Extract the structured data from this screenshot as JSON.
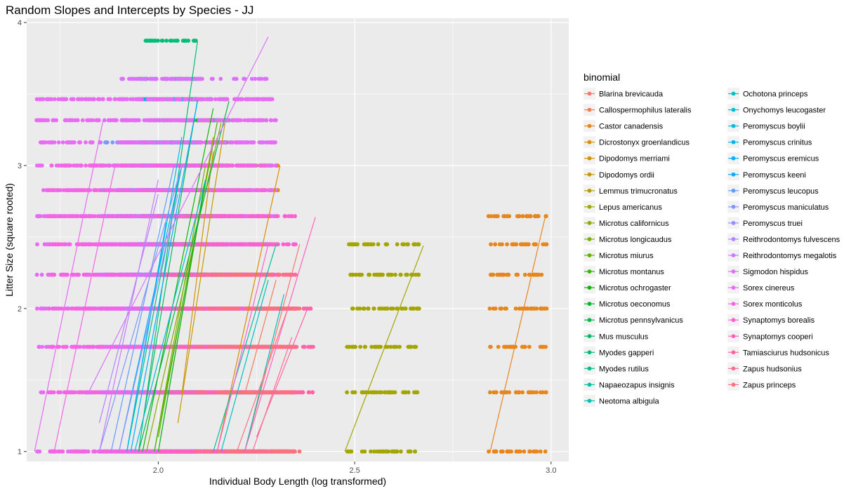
{
  "chart_data": {
    "type": "scatter",
    "title": "Random Slopes and Intercepts by Species - JJ",
    "xlabel": "Individual Body Length (log transformed)",
    "ylabel": "Litter Size (square rooted)",
    "xlim": [
      1.665,
      3.045
    ],
    "ylim": [
      0.93,
      4.03
    ],
    "x_ticks": [
      2.0,
      2.5,
      3.0
    ],
    "x_tick_labels": [
      "2.0",
      "2.5",
      "3.0"
    ],
    "y_ticks": [
      1,
      2,
      3,
      4
    ],
    "y_tick_labels": [
      "1",
      "2",
      "3",
      "4"
    ],
    "grid": true,
    "legend_title": "binomial",
    "legend_position": "right",
    "y_levels": [
      1.0,
      1.414,
      1.732,
      2.0,
      2.236,
      2.449,
      2.646,
      2.828,
      3.0,
      3.162,
      3.317,
      3.464,
      3.606,
      3.873
    ],
    "series": [
      {
        "name": "Blarina brevicauda",
        "color": "#F8766D",
        "x_range": [
          2.22,
          2.36
        ],
        "y_levels": [
          1.0,
          1.414,
          1.732,
          2.0
        ],
        "line": [
          [
            2.22,
            1.0
          ],
          [
            2.36,
            2.45
          ]
        ]
      },
      {
        "name": "Callospermophilus lateralis",
        "color": "#F37B59",
        "x_range": [
          2.22,
          2.3
        ],
        "y_levels": [
          1.732,
          2.0,
          2.236
        ],
        "line": [
          [
            2.22,
            1.4
          ],
          [
            2.3,
            2.2
          ]
        ]
      },
      {
        "name": "Castor canadensis",
        "color": "#E7861B",
        "x_range": [
          2.84,
          2.99
        ],
        "y_levels": [
          1.0,
          1.414,
          1.732,
          2.0,
          2.236,
          2.449,
          2.646
        ],
        "line": [
          [
            2.845,
            1.0
          ],
          [
            2.985,
            2.64
          ]
        ]
      },
      {
        "name": "Dicrostonyx groenlandicus",
        "color": "#DE8C00",
        "x_range": [
          2.16,
          2.31
        ],
        "y_levels": [
          1.0,
          1.414,
          2.0,
          2.449,
          2.828,
          3.0
        ],
        "line": [
          [
            2.15,
            1.0
          ],
          [
            2.31,
            3.0
          ]
        ]
      },
      {
        "name": "Dipodomys merriami",
        "color": "#D39200",
        "x_range": [
          2.05,
          2.15
        ],
        "y_levels": [
          1.414,
          1.732,
          2.0,
          2.236,
          2.449,
          2.646
        ],
        "line": [
          [
            2.06,
            1.4
          ],
          [
            2.14,
            3.1
          ]
        ]
      },
      {
        "name": "Dipodomys ordii",
        "color": "#C59900",
        "x_range": [
          2.05,
          2.17
        ],
        "y_levels": [
          1.414,
          1.732,
          2.0,
          2.236,
          2.449,
          2.646,
          3.0,
          3.317
        ],
        "line": [
          [
            2.05,
            1.2
          ],
          [
            2.17,
            3.3
          ]
        ]
      },
      {
        "name": "Lemmus trimucronatus",
        "color": "#B79F00",
        "x_range": [
          2.02,
          2.14
        ],
        "y_levels": [
          1.414,
          1.732,
          2.0,
          2.236,
          2.449,
          2.646,
          2.828,
          3.0
        ],
        "line": [
          [
            2.0,
            1.0
          ],
          [
            2.14,
            3.2
          ]
        ]
      },
      {
        "name": "Lepus americanus",
        "color": "#A3A500",
        "x_range": [
          2.48,
          2.67
        ],
        "y_levels": [
          1.0,
          1.414,
          1.732,
          2.0,
          2.236,
          2.449
        ],
        "line": [
          [
            2.475,
            1.0
          ],
          [
            2.675,
            2.44
          ]
        ]
      },
      {
        "name": "Microtus californicus",
        "color": "#8FAA00",
        "x_range": [
          1.98,
          2.15
        ],
        "y_levels": [
          1.0,
          1.414,
          1.732,
          2.0,
          2.236,
          2.449,
          2.646,
          2.828,
          3.0
        ],
        "line": [
          [
            1.97,
            1.0
          ],
          [
            2.16,
            3.3
          ]
        ]
      },
      {
        "name": "Microtus longicaudus",
        "color": "#7CAE00",
        "x_range": [
          2.0,
          2.13
        ],
        "y_levels": [
          1.0,
          1.414,
          1.732,
          2.0,
          2.236,
          2.449,
          2.646
        ],
        "line": [
          [
            1.99,
            1.0
          ],
          [
            2.12,
            3.0
          ]
        ]
      },
      {
        "name": "Microtus miurus",
        "color": "#62B200",
        "x_range": [
          2.0,
          2.12
        ],
        "y_levels": [
          1.0,
          1.414,
          1.732,
          2.0,
          2.236,
          2.449
        ],
        "line": [
          [
            2.0,
            1.1
          ],
          [
            2.12,
            2.9
          ]
        ]
      },
      {
        "name": "Microtus montanus",
        "color": "#3EB500",
        "x_range": [
          2.0,
          2.14
        ],
        "y_levels": [
          1.0,
          1.414,
          1.732,
          2.0,
          2.236,
          2.449,
          2.646,
          2.828
        ],
        "line": [
          [
            1.99,
            1.0
          ],
          [
            2.15,
            3.3
          ]
        ]
      },
      {
        "name": "Microtus ochrogaster",
        "color": "#0BB702",
        "x_range": [
          1.98,
          2.14
        ],
        "y_levels": [
          1.0,
          1.414,
          1.732,
          2.0,
          2.236,
          2.449,
          2.646,
          2.828,
          3.0
        ],
        "line": [
          [
            1.96,
            1.0
          ],
          [
            2.14,
            3.4
          ]
        ]
      },
      {
        "name": "Microtus oeconomus",
        "color": "#00B92A",
        "x_range": [
          2.0,
          2.12
        ],
        "y_levels": [
          1.0,
          1.414,
          1.732,
          2.0,
          2.236,
          2.449,
          2.646
        ],
        "line": [
          [
            2.0,
            1.0
          ],
          [
            2.12,
            2.9
          ]
        ]
      },
      {
        "name": "Microtus pennsylvanicus",
        "color": "#00BA4A",
        "x_range": [
          1.96,
          2.18
        ],
        "y_levels": [
          1.0,
          1.414,
          1.732,
          2.0,
          2.236,
          2.449,
          2.646,
          2.828,
          3.0,
          3.162,
          3.317,
          3.464
        ],
        "line": [
          [
            1.95,
            1.0
          ],
          [
            2.18,
            3.45
          ]
        ]
      },
      {
        "name": "Mus musculus",
        "color": "#00BC62",
        "x_range": [
          1.96,
          2.1
        ],
        "y_levels": [
          1.0,
          1.414,
          1.732,
          2.0,
          2.236,
          2.449,
          2.646,
          2.828,
          3.0
        ],
        "line": [
          [
            1.96,
            1.2
          ],
          [
            2.1,
            3.46
          ]
        ]
      },
      {
        "name": "Myodes gapperi",
        "color": "#00BD78",
        "x_range": [
          1.95,
          2.1
        ],
        "y_levels": [
          1.0,
          1.414,
          1.732,
          2.0,
          2.236,
          2.449,
          2.646,
          2.828,
          3.0,
          3.162,
          3.464,
          3.606,
          3.873
        ],
        "line": [
          [
            1.95,
            1.0
          ],
          [
            2.1,
            3.87
          ]
        ]
      },
      {
        "name": "Myodes rutilus",
        "color": "#00BF8C",
        "x_range": [
          1.95,
          2.05
        ],
        "y_levels": [
          1.0,
          1.414,
          1.732,
          2.0,
          2.236,
          2.449,
          2.646,
          2.828,
          3.0,
          3.162
        ],
        "line": [
          [
            1.92,
            1.0
          ],
          [
            2.06,
            3.0
          ]
        ]
      },
      {
        "name": "Napaeozapus insignis",
        "color": "#00C09F",
        "x_range": [
          2.14,
          2.27
        ],
        "y_levels": [
          1.0,
          1.414,
          1.732,
          2.0,
          2.236,
          2.449
        ],
        "line": [
          [
            2.14,
            1.0
          ],
          [
            2.3,
            2.45
          ]
        ]
      },
      {
        "name": "Neotoma albigula",
        "color": "#00C0B2",
        "x_range": [
          2.2,
          2.3
        ],
        "y_levels": [
          1.0,
          1.414,
          1.732,
          2.0
        ],
        "line": [
          [
            2.22,
            1.0
          ],
          [
            2.32,
            2.1
          ]
        ]
      },
      {
        "name": "Ochotona princeps",
        "color": "#00BFC4",
        "x_range": [
          2.16,
          2.28
        ],
        "y_levels": [
          1.0,
          1.414,
          1.732,
          2.0,
          2.236,
          2.449
        ],
        "line": [
          [
            2.16,
            1.0
          ],
          [
            2.28,
            2.2
          ]
        ]
      },
      {
        "name": "Onychomys leucogaster",
        "color": "#00BDD5",
        "x_range": [
          1.95,
          2.12
        ],
        "y_levels": [
          1.0,
          1.414,
          1.732,
          2.0,
          2.236,
          2.449,
          2.646,
          2.828
        ],
        "line": [
          [
            1.94,
            1.0
          ],
          [
            2.12,
            2.9
          ]
        ]
      },
      {
        "name": "Peromyscus boylii",
        "color": "#00BBE4",
        "x_range": [
          1.9,
          2.05
        ],
        "y_levels": [
          1.0,
          1.414,
          1.732,
          2.0,
          2.236,
          2.449,
          2.646,
          2.828,
          3.0
        ],
        "line": [
          [
            1.92,
            1.0
          ],
          [
            2.06,
            3.2
          ]
        ]
      },
      {
        "name": "Peromyscus crinitus",
        "color": "#00B7F2",
        "x_range": [
          1.92,
          2.0
        ],
        "y_levels": [
          1.0,
          1.414,
          1.732,
          2.0,
          2.236,
          2.449
        ],
        "line": [
          [
            1.92,
            1.0
          ],
          [
            2.02,
            2.6
          ]
        ]
      },
      {
        "name": "Peromyscus eremicus",
        "color": "#00B2FE",
        "x_range": [
          1.92,
          2.05
        ],
        "y_levels": [
          1.0,
          1.414,
          1.732,
          2.0,
          2.236,
          2.449,
          2.646,
          2.828,
          3.0
        ],
        "line": [
          [
            1.9,
            1.0
          ],
          [
            2.06,
            3.0
          ]
        ]
      },
      {
        "name": "Peromyscus keeni",
        "color": "#00ACFC",
        "x_range": [
          1.95,
          2.1
        ],
        "y_levels": [
          1.0,
          1.414,
          1.732,
          2.0,
          2.236,
          2.449,
          2.646,
          2.828,
          3.0,
          3.162,
          3.464
        ],
        "line": [
          [
            1.93,
            1.0
          ],
          [
            2.1,
            3.45
          ]
        ]
      },
      {
        "name": "Peromyscus leucopus",
        "color": "#5E9DFB",
        "x_range": [
          1.9,
          2.05
        ],
        "y_levels": [
          1.0,
          1.414,
          1.732,
          2.0,
          2.236,
          2.449,
          2.646,
          2.828,
          3.0
        ],
        "line": [
          [
            1.88,
            1.0
          ],
          [
            2.04,
            3.0
          ]
        ]
      },
      {
        "name": "Peromyscus maniculatus",
        "color": "#7F96FF",
        "x_range": [
          1.85,
          2.1
        ],
        "y_levels": [
          1.0,
          1.414,
          1.732,
          2.0,
          2.236,
          2.449,
          2.646,
          2.828,
          3.0,
          3.162
        ],
        "line": [
          [
            1.85,
            1.0
          ],
          [
            2.06,
            3.0
          ]
        ]
      },
      {
        "name": "Peromyscus truei",
        "color": "#9590FF",
        "x_range": [
          1.92,
          2.08
        ],
        "y_levels": [
          1.0,
          1.414,
          1.732,
          2.0,
          2.236,
          2.449,
          2.646,
          2.828
        ],
        "line": [
          [
            1.9,
            1.0
          ],
          [
            2.05,
            2.8
          ]
        ]
      },
      {
        "name": "Reithrodontomys fulvescens",
        "color": "#B083FF",
        "x_range": [
          1.85,
          2.0
        ],
        "y_levels": [
          1.0,
          1.414,
          1.732,
          2.0,
          2.236,
          2.449
        ],
        "line": [
          [
            1.85,
            1.2
          ],
          [
            2.0,
            2.8
          ]
        ]
      },
      {
        "name": "Reithrodontomys megalotis",
        "color": "#C77CFF",
        "x_range": [
          1.85,
          2.0
        ],
        "y_levels": [
          1.0,
          1.414,
          1.732,
          2.0,
          2.236,
          2.449,
          2.646
        ],
        "line": [
          [
            1.85,
            1.0
          ],
          [
            2.0,
            2.9
          ]
        ]
      },
      {
        "name": "Sigmodon hispidus",
        "color": "#DB72FB",
        "x_range": [
          1.9,
          2.28
        ],
        "y_levels": [
          1.0,
          1.414,
          1.732,
          2.0,
          2.236,
          2.449,
          2.646,
          2.828,
          3.0,
          3.162,
          3.317,
          3.464,
          3.606
        ],
        "line": [
          [
            1.82,
            1.4
          ],
          [
            2.28,
            3.9
          ]
        ]
      },
      {
        "name": "Sorex cinereus",
        "color": "#E76BF3",
        "x_range": [
          1.69,
          2.3
        ],
        "y_levels": [
          1.0,
          1.414,
          1.732,
          2.0,
          2.236,
          2.449,
          2.646,
          2.828,
          3.0,
          3.162,
          3.317,
          3.464
        ],
        "line": [
          [
            1.685,
            1.0
          ],
          [
            1.86,
            3.32
          ]
        ]
      },
      {
        "name": "Sorex monticolus",
        "color": "#F564E3",
        "x_range": [
          1.72,
          2.28
        ],
        "y_levels": [
          1.0,
          1.414,
          1.732,
          2.0,
          2.236,
          2.449,
          2.646,
          2.828,
          3.0
        ],
        "line": [
          [
            1.735,
            1.0
          ],
          [
            1.89,
            3.0
          ]
        ]
      },
      {
        "name": "Synaptomys borealis",
        "color": "#FD61D1",
        "x_range": [
          2.0,
          2.35
        ],
        "y_levels": [
          1.0,
          1.414,
          1.732,
          2.0,
          2.236,
          2.449,
          2.646
        ],
        "line": [
          [
            2.15,
            1.0
          ],
          [
            2.28,
            2.45
          ]
        ]
      },
      {
        "name": "Synaptomys cooperi",
        "color": "#FF62BC",
        "x_range": [
          2.0,
          2.35
        ],
        "y_levels": [
          1.0,
          1.414,
          1.732,
          2.0,
          2.236
        ],
        "line": [
          [
            2.22,
            1.0
          ],
          [
            2.4,
            2.64
          ]
        ]
      },
      {
        "name": "Tamiasciurus hudsonicus",
        "color": "#FF65A6",
        "x_range": [
          2.25,
          2.4
        ],
        "y_levels": [
          1.414,
          1.732,
          2.0
        ],
        "line": [
          [
            2.25,
            1.1
          ],
          [
            2.38,
            2.0
          ]
        ]
      },
      {
        "name": "Zapus hudsonius",
        "color": "#FF6C90",
        "x_range": [
          2.1,
          2.35
        ],
        "y_levels": [
          1.0,
          1.414,
          1.732,
          2.0,
          2.236
        ],
        "line": [
          [
            2.24,
            1.0
          ],
          [
            2.34,
            1.8
          ]
        ]
      },
      {
        "name": "Zapus princeps",
        "color": "#FC717F",
        "x_range": [
          2.15,
          2.35
        ],
        "y_levels": [
          1.0,
          1.414,
          1.732,
          2.0,
          2.236
        ],
        "line": [
          [
            2.2,
            1.0
          ],
          [
            2.33,
            2.0
          ]
        ]
      }
    ]
  }
}
